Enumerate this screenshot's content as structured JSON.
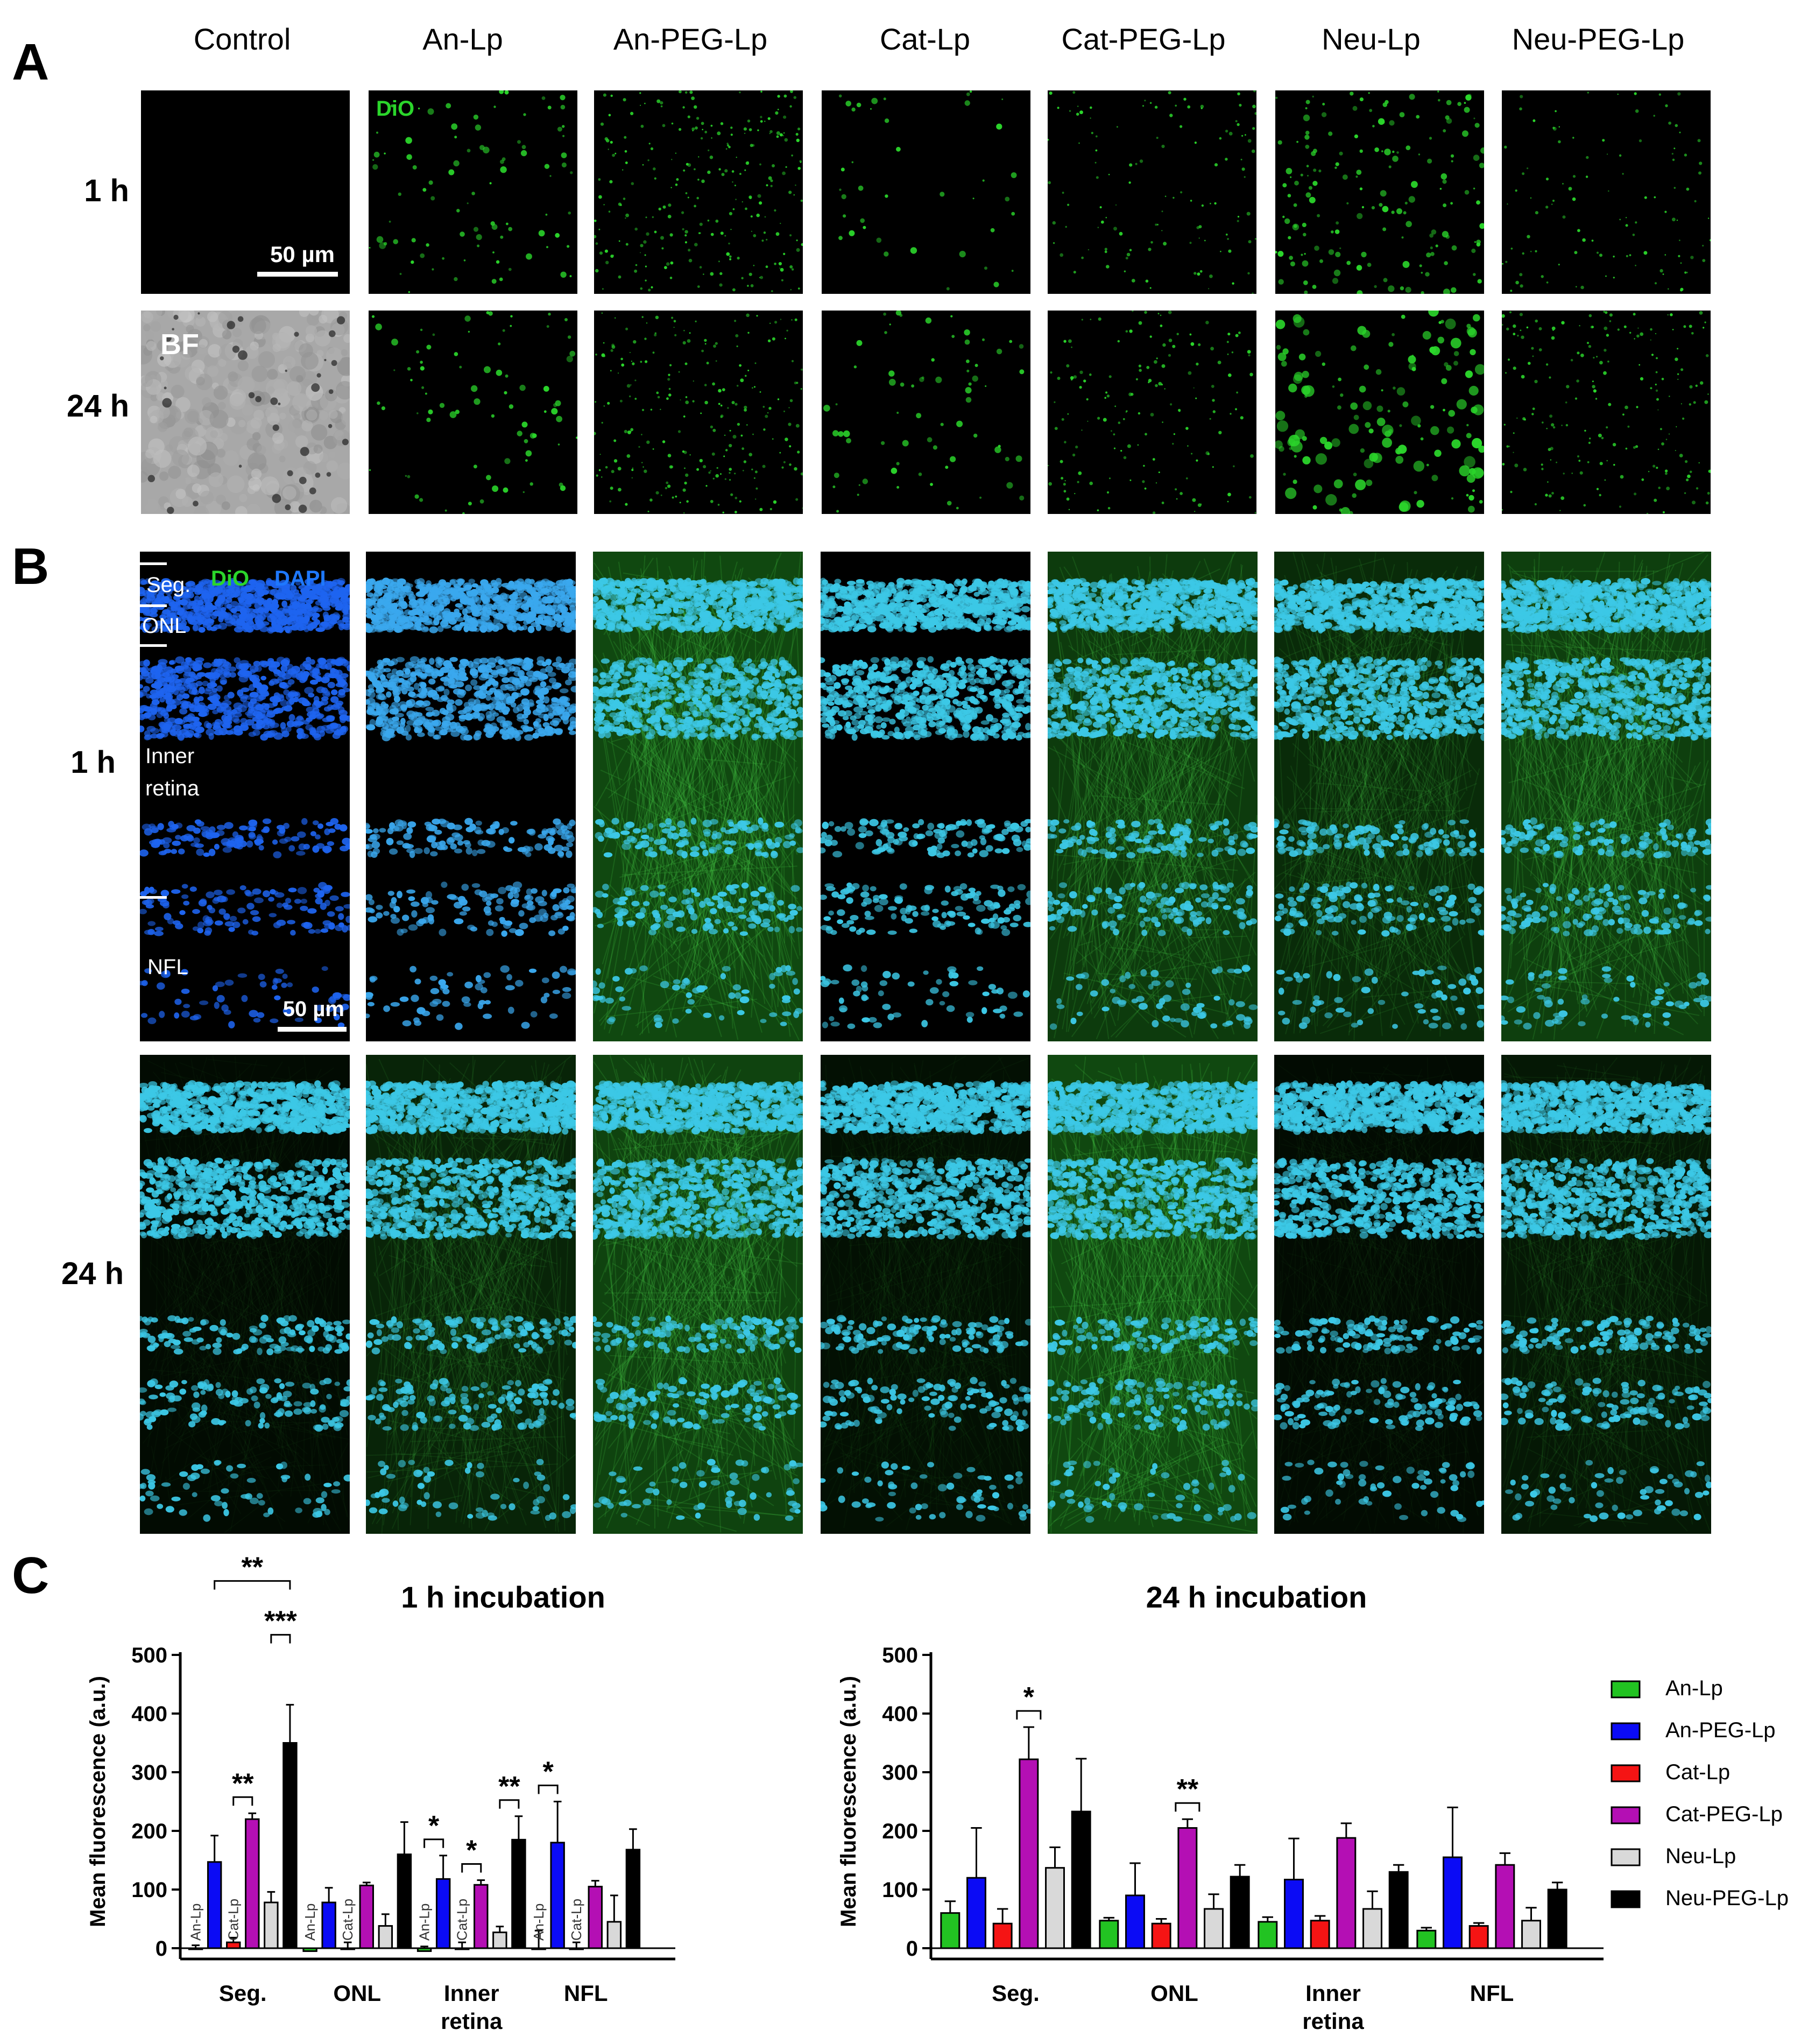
{
  "panels": {
    "a_letter": "A",
    "b_letter": "B",
    "c_letter": "C"
  },
  "columns": [
    "Control",
    "An-Lp",
    "An-PEG-Lp",
    "Cat-Lp",
    "Cat-PEG-Lp",
    "Neu-Lp",
    "Neu-PEG-Lp"
  ],
  "panel_a": {
    "rows": [
      "1 h",
      "24 h"
    ],
    "scale_label": "50 µm",
    "dio_label": "DiO",
    "bf_label": "BF"
  },
  "panel_b": {
    "rows": [
      "1 h",
      "24 h"
    ],
    "scale_label": "50 µm",
    "dio_label": "DiO",
    "dapi_label": "DAPI",
    "layers": [
      "Seg.",
      "ONL",
      "Inner",
      "retina",
      "NFL"
    ]
  },
  "colors": {
    "An-Lp": "#22c322",
    "An-PEG-Lp": "#0b0bf5",
    "Cat-Lp": "#f51414",
    "Cat-PEG-Lp": "#b40fb4",
    "Neu-Lp": "#d9d9d9",
    "Neu-PEG-Lp": "#000000",
    "dio": "#2bd62b",
    "dapi": "#1e78ff",
    "dapi_cyan": "#3cc8e6"
  },
  "chart_data": [
    {
      "type": "bar",
      "title": "1 h incubation",
      "ylabel": "Mean fluorescence (a.u.)",
      "ylim": [
        0,
        500
      ],
      "yticks": [
        0,
        100,
        200,
        300,
        400,
        500
      ],
      "categories": [
        "Seg.",
        "ONL",
        "Inner\nretina",
        "NFL"
      ],
      "series": [
        {
          "name": "An-Lp",
          "values": [
            0,
            -5,
            -5,
            0
          ],
          "errors": [
            5,
            5,
            8,
            30
          ]
        },
        {
          "name": "An-PEG-Lp",
          "values": [
            147,
            78,
            118,
            180
          ],
          "errors": [
            45,
            25,
            40,
            70
          ]
        },
        {
          "name": "Cat-Lp",
          "values": [
            10,
            0,
            0,
            0
          ],
          "errors": [
            8,
            10,
            10,
            10
          ]
        },
        {
          "name": "Cat-PEG-Lp",
          "values": [
            220,
            107,
            108,
            105
          ],
          "errors": [
            10,
            5,
            8,
            10
          ]
        },
        {
          "name": "Neu-Lp",
          "values": [
            78,
            38,
            27,
            45
          ],
          "errors": [
            18,
            20,
            10,
            45
          ]
        },
        {
          "name": "Neu-PEG-Lp",
          "values": [
            350,
            160,
            185,
            168
          ],
          "errors": [
            65,
            55,
            40,
            35
          ]
        }
      ],
      "inner_labels": [
        "An-Lp",
        "Cat-Lp"
      ],
      "significance": [
        {
          "group": 0,
          "from": 1,
          "to": 5,
          "label": "**",
          "level": 2
        },
        {
          "group": 0,
          "from": 4,
          "to": 5,
          "label": "***",
          "level": 1
        },
        {
          "group": 0,
          "from": 2,
          "to": 3,
          "label": "**",
          "level": 0
        },
        {
          "group": 2,
          "from": 0,
          "to": 1,
          "label": "*",
          "level": 0
        },
        {
          "group": 2,
          "from": 2,
          "to": 3,
          "label": "*",
          "level": 0
        },
        {
          "group": 2,
          "from": 4,
          "to": 5,
          "label": "**",
          "level": 0
        },
        {
          "group": 3,
          "from": 0,
          "to": 1,
          "label": "*",
          "level": 0
        }
      ]
    },
    {
      "type": "bar",
      "title": "24 h incubation",
      "ylabel": "Mean fluorescence (a.u.)",
      "ylim": [
        0,
        500
      ],
      "yticks": [
        0,
        100,
        200,
        300,
        400,
        500
      ],
      "categories": [
        "Seg.",
        "ONL",
        "Inner\nretina",
        "NFL"
      ],
      "series": [
        {
          "name": "An-Lp",
          "values": [
            60,
            47,
            45,
            30
          ],
          "errors": [
            20,
            5,
            8,
            5
          ]
        },
        {
          "name": "An-PEG-Lp",
          "values": [
            120,
            90,
            117,
            155
          ],
          "errors": [
            85,
            55,
            70,
            85
          ]
        },
        {
          "name": "Cat-Lp",
          "values": [
            42,
            42,
            47,
            38
          ],
          "errors": [
            25,
            8,
            8,
            5
          ]
        },
        {
          "name": "Cat-PEG-Lp",
          "values": [
            322,
            205,
            188,
            142
          ],
          "errors": [
            55,
            15,
            25,
            20
          ]
        },
        {
          "name": "Neu-Lp",
          "values": [
            137,
            67,
            67,
            47
          ],
          "errors": [
            35,
            25,
            30,
            22
          ]
        },
        {
          "name": "Neu-PEG-Lp",
          "values": [
            233,
            122,
            130,
            100
          ],
          "errors": [
            90,
            20,
            12,
            12
          ]
        }
      ],
      "inner_labels": [],
      "significance": [
        {
          "group": 0,
          "from": 3,
          "to": 3,
          "label": "*",
          "level": 0
        },
        {
          "group": 1,
          "from": 3,
          "to": 3,
          "label": "**",
          "level": 0
        }
      ]
    }
  ],
  "legend": [
    "An-Lp",
    "An-PEG-Lp",
    "Cat-Lp",
    "Cat-PEG-Lp",
    "Neu-Lp",
    "Neu-PEG-Lp"
  ]
}
